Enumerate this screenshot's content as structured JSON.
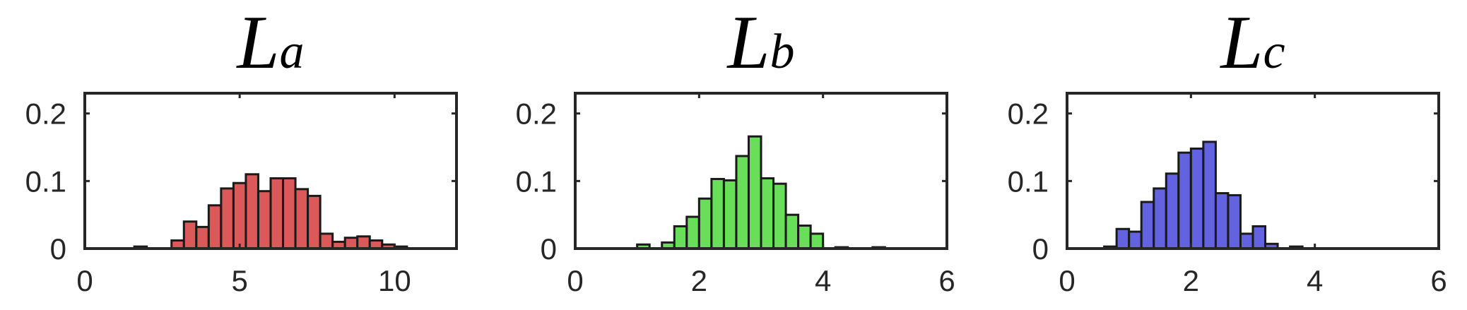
{
  "chart_data": [
    {
      "type": "bar",
      "title_main": "L",
      "title_sub": "a",
      "color": "#d94c4c",
      "xlim": [
        0,
        12
      ],
      "ylim": [
        0,
        0.23
      ],
      "xticks": [
        0,
        5,
        10
      ],
      "xtick_labels": [
        "0",
        "5",
        "10"
      ],
      "yticks": [
        0,
        0.1,
        0.2
      ],
      "ytick_labels": [
        "0",
        "0.1",
        "0.2"
      ],
      "bin_width": 0.4,
      "bins": [
        {
          "x0": 1.6,
          "value": 0.003
        },
        {
          "x0": 2.8,
          "value": 0.012
        },
        {
          "x0": 3.2,
          "value": 0.04
        },
        {
          "x0": 3.6,
          "value": 0.032
        },
        {
          "x0": 4.0,
          "value": 0.064
        },
        {
          "x0": 4.4,
          "value": 0.089
        },
        {
          "x0": 4.8,
          "value": 0.097
        },
        {
          "x0": 5.2,
          "value": 0.11
        },
        {
          "x0": 5.6,
          "value": 0.085
        },
        {
          "x0": 6.0,
          "value": 0.104
        },
        {
          "x0": 6.4,
          "value": 0.104
        },
        {
          "x0": 6.8,
          "value": 0.088
        },
        {
          "x0": 7.2,
          "value": 0.078
        },
        {
          "x0": 7.6,
          "value": 0.022
        },
        {
          "x0": 8.0,
          "value": 0.01
        },
        {
          "x0": 8.4,
          "value": 0.016
        },
        {
          "x0": 8.8,
          "value": 0.018
        },
        {
          "x0": 9.2,
          "value": 0.012
        },
        {
          "x0": 9.6,
          "value": 0.006
        },
        {
          "x0": 10.0,
          "value": 0.003
        }
      ]
    },
    {
      "type": "bar",
      "title_main": "L",
      "title_sub": "b",
      "color": "#5cdb4c",
      "xlim": [
        0,
        6
      ],
      "ylim": [
        0,
        0.23
      ],
      "xticks": [
        0,
        2,
        4,
        6
      ],
      "xtick_labels": [
        "0",
        "2",
        "4",
        "6"
      ],
      "yticks": [
        0,
        0.1,
        0.2
      ],
      "ytick_labels": [
        "0",
        "0.1",
        "0.2"
      ],
      "bin_width": 0.2,
      "bins": [
        {
          "x0": 1.0,
          "value": 0.006
        },
        {
          "x0": 1.4,
          "value": 0.009
        },
        {
          "x0": 1.6,
          "value": 0.033
        },
        {
          "x0": 1.8,
          "value": 0.047
        },
        {
          "x0": 2.0,
          "value": 0.074
        },
        {
          "x0": 2.2,
          "value": 0.103
        },
        {
          "x0": 2.4,
          "value": 0.101
        },
        {
          "x0": 2.6,
          "value": 0.137
        },
        {
          "x0": 2.8,
          "value": 0.166
        },
        {
          "x0": 3.0,
          "value": 0.104
        },
        {
          "x0": 3.2,
          "value": 0.096
        },
        {
          "x0": 3.4,
          "value": 0.05
        },
        {
          "x0": 3.6,
          "value": 0.034
        },
        {
          "x0": 3.8,
          "value": 0.022
        },
        {
          "x0": 4.2,
          "value": 0.002
        },
        {
          "x0": 4.8,
          "value": 0.002
        }
      ]
    },
    {
      "type": "bar",
      "title_main": "L",
      "title_sub": "c",
      "color": "#5757e0",
      "xlim": [
        0,
        6
      ],
      "ylim": [
        0,
        0.23
      ],
      "xticks": [
        0,
        2,
        4,
        6
      ],
      "xtick_labels": [
        "0",
        "2",
        "4",
        "6"
      ],
      "yticks": [
        0,
        0.1,
        0.2
      ],
      "ytick_labels": [
        "0",
        "0.1",
        "0.2"
      ],
      "bin_width": 0.2,
      "bins": [
        {
          "x0": 0.6,
          "value": 0.003
        },
        {
          "x0": 0.8,
          "value": 0.029
        },
        {
          "x0": 1.0,
          "value": 0.025
        },
        {
          "x0": 1.2,
          "value": 0.069
        },
        {
          "x0": 1.4,
          "value": 0.089
        },
        {
          "x0": 1.6,
          "value": 0.111
        },
        {
          "x0": 1.8,
          "value": 0.142
        },
        {
          "x0": 2.0,
          "value": 0.148
        },
        {
          "x0": 2.2,
          "value": 0.158
        },
        {
          "x0": 2.4,
          "value": 0.082
        },
        {
          "x0": 2.6,
          "value": 0.079
        },
        {
          "x0": 2.8,
          "value": 0.022
        },
        {
          "x0": 3.0,
          "value": 0.033
        },
        {
          "x0": 3.2,
          "value": 0.007
        },
        {
          "x0": 3.6,
          "value": 0.003
        }
      ]
    }
  ]
}
